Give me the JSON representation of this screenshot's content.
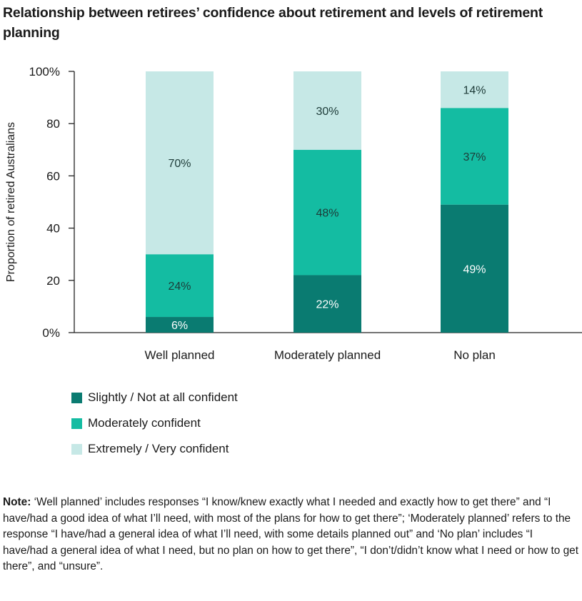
{
  "chart_data": {
    "type": "bar",
    "stacked": true,
    "title": "Relationship between retirees’ confidence about retirement and levels of retirement planning",
    "ylabel": "Proportion of retired Australians",
    "xlabel": "",
    "ylim": [
      0,
      100
    ],
    "yticks": [
      "0%",
      "20",
      "40",
      "60",
      "80",
      "100%"
    ],
    "ytick_values": [
      0,
      20,
      40,
      60,
      80,
      100
    ],
    "grid": false,
    "legend_position": "bottom-left",
    "categories": [
      "Well planned",
      "Moderately planned",
      "No plan"
    ],
    "series": [
      {
        "name": "Slightly / Not at all confident",
        "color": "#0a7b71",
        "label_color": "#ffffff",
        "values": [
          6,
          22,
          49
        ],
        "labels": [
          "6%",
          "22%",
          "49%"
        ]
      },
      {
        "name": "Moderately confident",
        "color": "#14bca2",
        "label_color": "#1d3b38",
        "values": [
          24,
          48,
          37
        ],
        "labels": [
          "24%",
          "48%",
          "37%"
        ]
      },
      {
        "name": "Extremely / Very confident",
        "color": "#c6e8e6",
        "label_color": "#1d3b38",
        "values": [
          70,
          30,
          14
        ],
        "labels": [
          "70%",
          "30%",
          "14%"
        ]
      }
    ]
  },
  "note": {
    "bold": "Note:",
    "text": " ‘Well planned’ includes responses “I know/knew exactly what I needed and exactly how to get there” and “I have/had a good idea of what I’ll need, with most of the plans for how to get there”; ‘Moderately planned’ refers to the response “I have/had a general idea of what I’ll need, with some details planned out” and ‘No plan’ includes “I have/had a general idea of what I need, but no plan on how to get there”, “I don’t/didn’t know what I need or how to get there”, and “unsure”."
  }
}
